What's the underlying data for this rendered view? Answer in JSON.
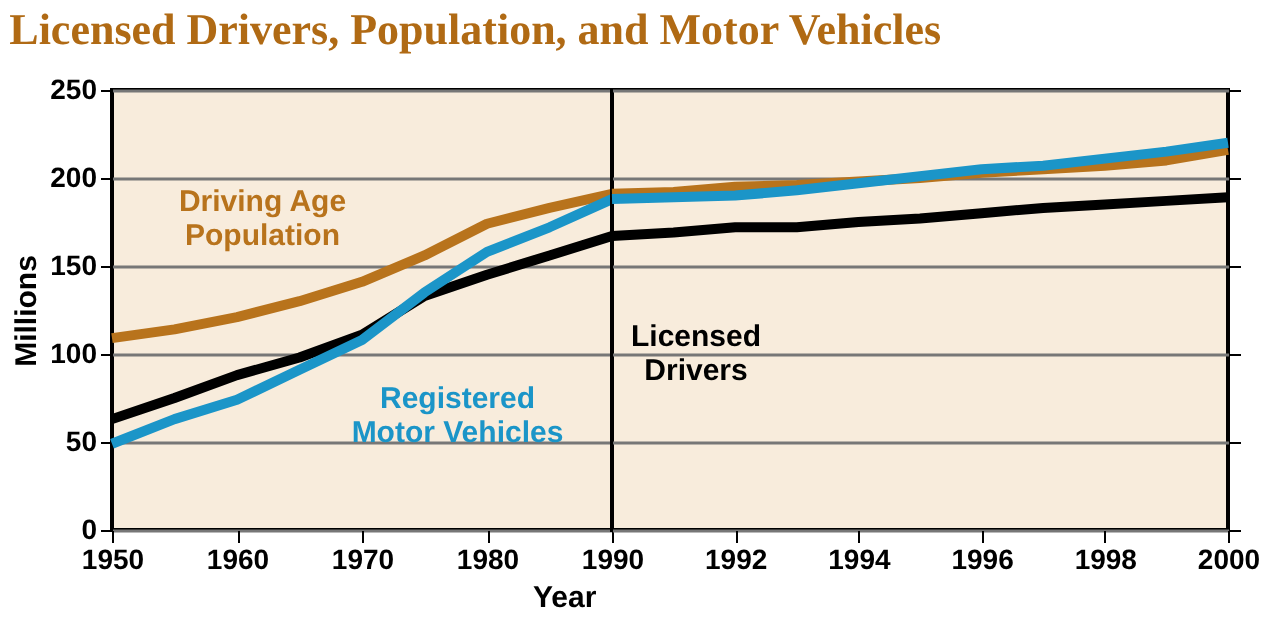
{
  "chart_data": [
    {
      "type": "line",
      "title": "Licensed Drivers, Population, and Motor Vehicles",
      "ylabel": "Millions",
      "x": [
        1950,
        1955,
        1960,
        1965,
        1970,
        1975,
        1980,
        1985,
        1990
      ],
      "xlim": [
        1950,
        1990
      ],
      "xticks": [
        1950,
        1960,
        1970,
        1980,
        1990
      ],
      "ylim": [
        0,
        250
      ],
      "yticks": [
        0,
        50,
        100,
        150,
        200,
        250
      ],
      "grid": "y",
      "tick_labels": "xy",
      "series": [
        {
          "name": "Driving Age Population",
          "color": "#b8731c",
          "values": [
            109,
            114,
            121,
            130,
            141,
            156,
            174,
            183,
            191
          ]
        },
        {
          "color": "#000000",
          "values": [
            63,
            75,
            88,
            98,
            111,
            133,
            145,
            156,
            167
          ]
        },
        {
          "name": "Registered Motor Vehicles",
          "color": "#1b95c8",
          "values": [
            49,
            63,
            74,
            91,
            108,
            135,
            158,
            172,
            188
          ]
        }
      ]
    },
    {
      "type": "line",
      "xlabel": "Year",
      "x": [
        1990,
        1991,
        1992,
        1993,
        1994,
        1995,
        1996,
        1997,
        1998,
        1999,
        2000
      ],
      "xlim": [
        1990,
        2000
      ],
      "xticks": [
        1992,
        1994,
        1996,
        1998,
        2000
      ],
      "ylim": [
        0,
        250
      ],
      "yticks": [
        0,
        50,
        100,
        150,
        200,
        250
      ],
      "grid": "y",
      "tick_labels": "x",
      "series": [
        {
          "color": "#b8731c",
          "values": [
            191,
            192,
            195,
            196,
            198,
            200,
            203,
            205,
            207,
            210,
            216
          ]
        },
        {
          "name": "Licensed Drivers",
          "color": "#000000",
          "values": [
            167,
            169,
            172,
            172,
            175,
            177,
            180,
            183,
            185,
            187,
            189
          ]
        },
        {
          "color": "#1b95c8",
          "values": [
            188,
            189,
            190,
            193,
            197,
            201,
            205,
            207,
            211,
            215,
            220
          ]
        }
      ]
    }
  ]
}
